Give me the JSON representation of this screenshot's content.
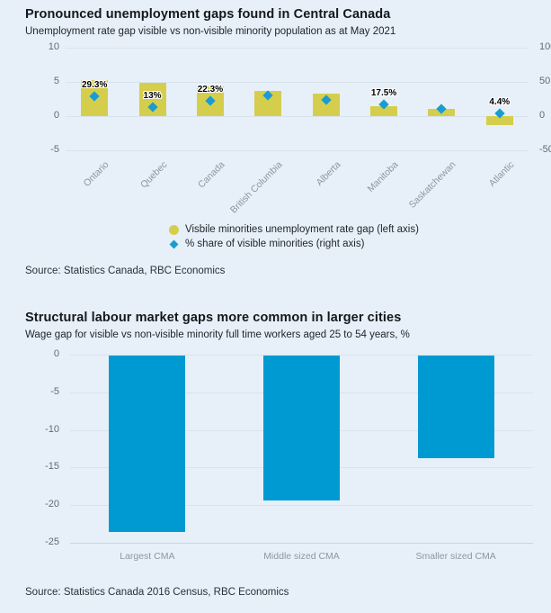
{
  "colors": {
    "background": "#e7f0f8",
    "bar_yellow": "#d5ce4d",
    "marker_blue": "#1b9cd0",
    "bar_blue": "#009ad2",
    "gridline": "#d9e3ed",
    "axis_line": "#c8d4e0",
    "tick_text": "#5f6b76",
    "category_text": "#8d97a0"
  },
  "chart_data": [
    {
      "type": "bar",
      "title": "Pronounced unemployment gaps found in Central Canada",
      "subtitle": "Unemployment rate gap visible vs non-visible minority population as at May 2021",
      "categories": [
        "Ontario",
        "Quebec",
        "Canada",
        "British Columbia",
        "Alberta",
        "Manitoba",
        "Saskatchewan",
        "Atlantic"
      ],
      "series": [
        {
          "name": "Visbile minorities unemployment rate gap (left axis)",
          "type": "bar",
          "axis": "left",
          "color": "#d5ce4d",
          "values": [
            5.3,
            4.9,
            4.3,
            3.7,
            3.3,
            1.4,
            1.1,
            -1.3
          ]
        },
        {
          "name": "% share of visible minorities (right axis)",
          "type": "scatter",
          "marker": "diamond",
          "axis": "right",
          "color": "#1b9cd0",
          "values": [
            29.3,
            13,
            22.3,
            30.5,
            23.5,
            17.5,
            11,
            4.4
          ],
          "labels": [
            "29.3%",
            "13%",
            "22.3%",
            "",
            "",
            "17.5%",
            "",
            "4.4%"
          ]
        }
      ],
      "left_axis": {
        "ticks": [
          "10",
          "5",
          "0",
          "-5"
        ],
        "range": [
          -5,
          10
        ]
      },
      "right_axis": {
        "ticks": [
          "100",
          "50",
          "0",
          "-50"
        ],
        "range": [
          -50,
          100
        ]
      },
      "grid": true,
      "legend_position": "bottom",
      "source": "Source: Statistics Canada, RBC Economics"
    },
    {
      "type": "bar",
      "title": "Structural labour market gaps more common in larger cities",
      "subtitle": "Wage gap for visible vs non-visible minority full time workers aged 25 to 54 years, %",
      "categories": [
        "Largest CMA",
        "Middle sized CMA",
        "Smaller sized CMA"
      ],
      "values": [
        -23.4,
        -19.2,
        -13.6
      ],
      "color": "#009ad2",
      "yticks": [
        "0",
        "-5",
        "-10",
        "-15",
        "-20",
        "-25"
      ],
      "ylim": [
        -25,
        0
      ],
      "grid": true,
      "source": "Source: Statistics Canada 2016 Census, RBC Economics"
    }
  ]
}
